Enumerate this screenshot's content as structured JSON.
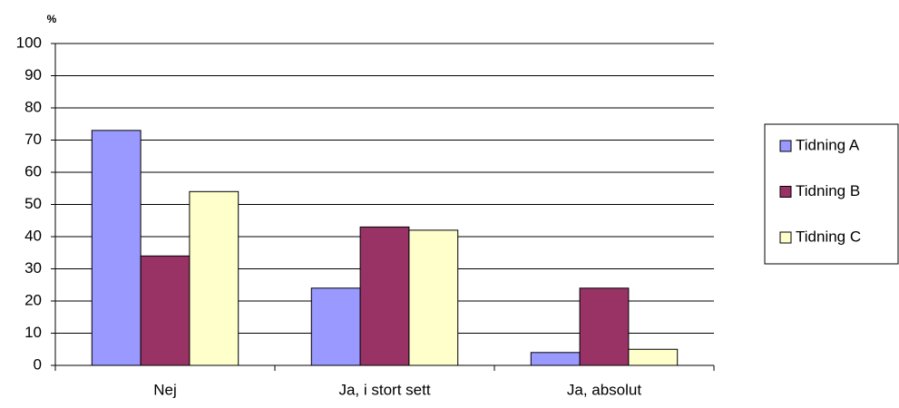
{
  "chart_data": {
    "type": "bar",
    "y_label": "%",
    "categories": [
      "Nej",
      "Ja, i stort sett",
      "Ja, absolut"
    ],
    "series": [
      {
        "name": "Tidning A",
        "color": "#9999ff",
        "values": [
          73,
          24,
          4
        ]
      },
      {
        "name": "Tidning B",
        "color": "#993366",
        "values": [
          34,
          43,
          24
        ]
      },
      {
        "name": "Tidning C",
        "color": "#ffffcc",
        "values": [
          54,
          42,
          5
        ]
      }
    ],
    "ylim": [
      0,
      100
    ],
    "yticks": [
      0,
      10,
      20,
      30,
      40,
      50,
      60,
      70,
      80,
      90,
      100
    ],
    "grid": true,
    "legend": "right"
  }
}
